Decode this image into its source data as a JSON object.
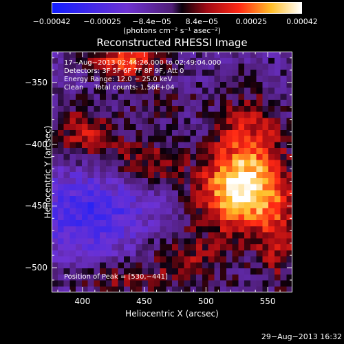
{
  "colorbar": {
    "tick_labels": [
      "−0.00042",
      "−0.00025",
      "−8.4e−05",
      "8.4e−05",
      "0.00025",
      "0.00042"
    ],
    "tick_values": [
      -0.00042,
      -0.00025,
      -8.4e-05,
      8.4e-05,
      0.00025,
      0.00042
    ],
    "range": [
      -0.00042,
      0.00042
    ],
    "unit_label": "(photons cm⁻² s⁻¹ asec⁻²)"
  },
  "chart_data": {
    "type": "heatmap",
    "title": "Reconstructed RHESSI Image",
    "xlabel": "Heliocentric X (arcsec)",
    "ylabel": "Heliocentric Y (arcsec)",
    "xlim": [
      375,
      570
    ],
    "ylim": [
      -520,
      -325
    ],
    "x_ticks": [
      400,
      450,
      500,
      550
    ],
    "y_ticks": [
      -350,
      -400,
      -450,
      -500
    ],
    "colormap": "rainbow-blue-purple-black-red-yellow-white",
    "peak_position": [
      530,
      -441
    ],
    "info_lines": [
      "17−Aug−2013 02:44:26.000 to 02:49:04.000",
      "Detectors: 3F 5F 6F 7F 8F 9F, Att 0",
      "Energy Range: 12.0 − 25.0 keV",
      "Clean     Total counts: 1.56E+04"
    ],
    "peak_label": "Position of Peak = [530,−441]"
  },
  "footer": {
    "timestamp": "29−Aug−2013 16:32"
  }
}
